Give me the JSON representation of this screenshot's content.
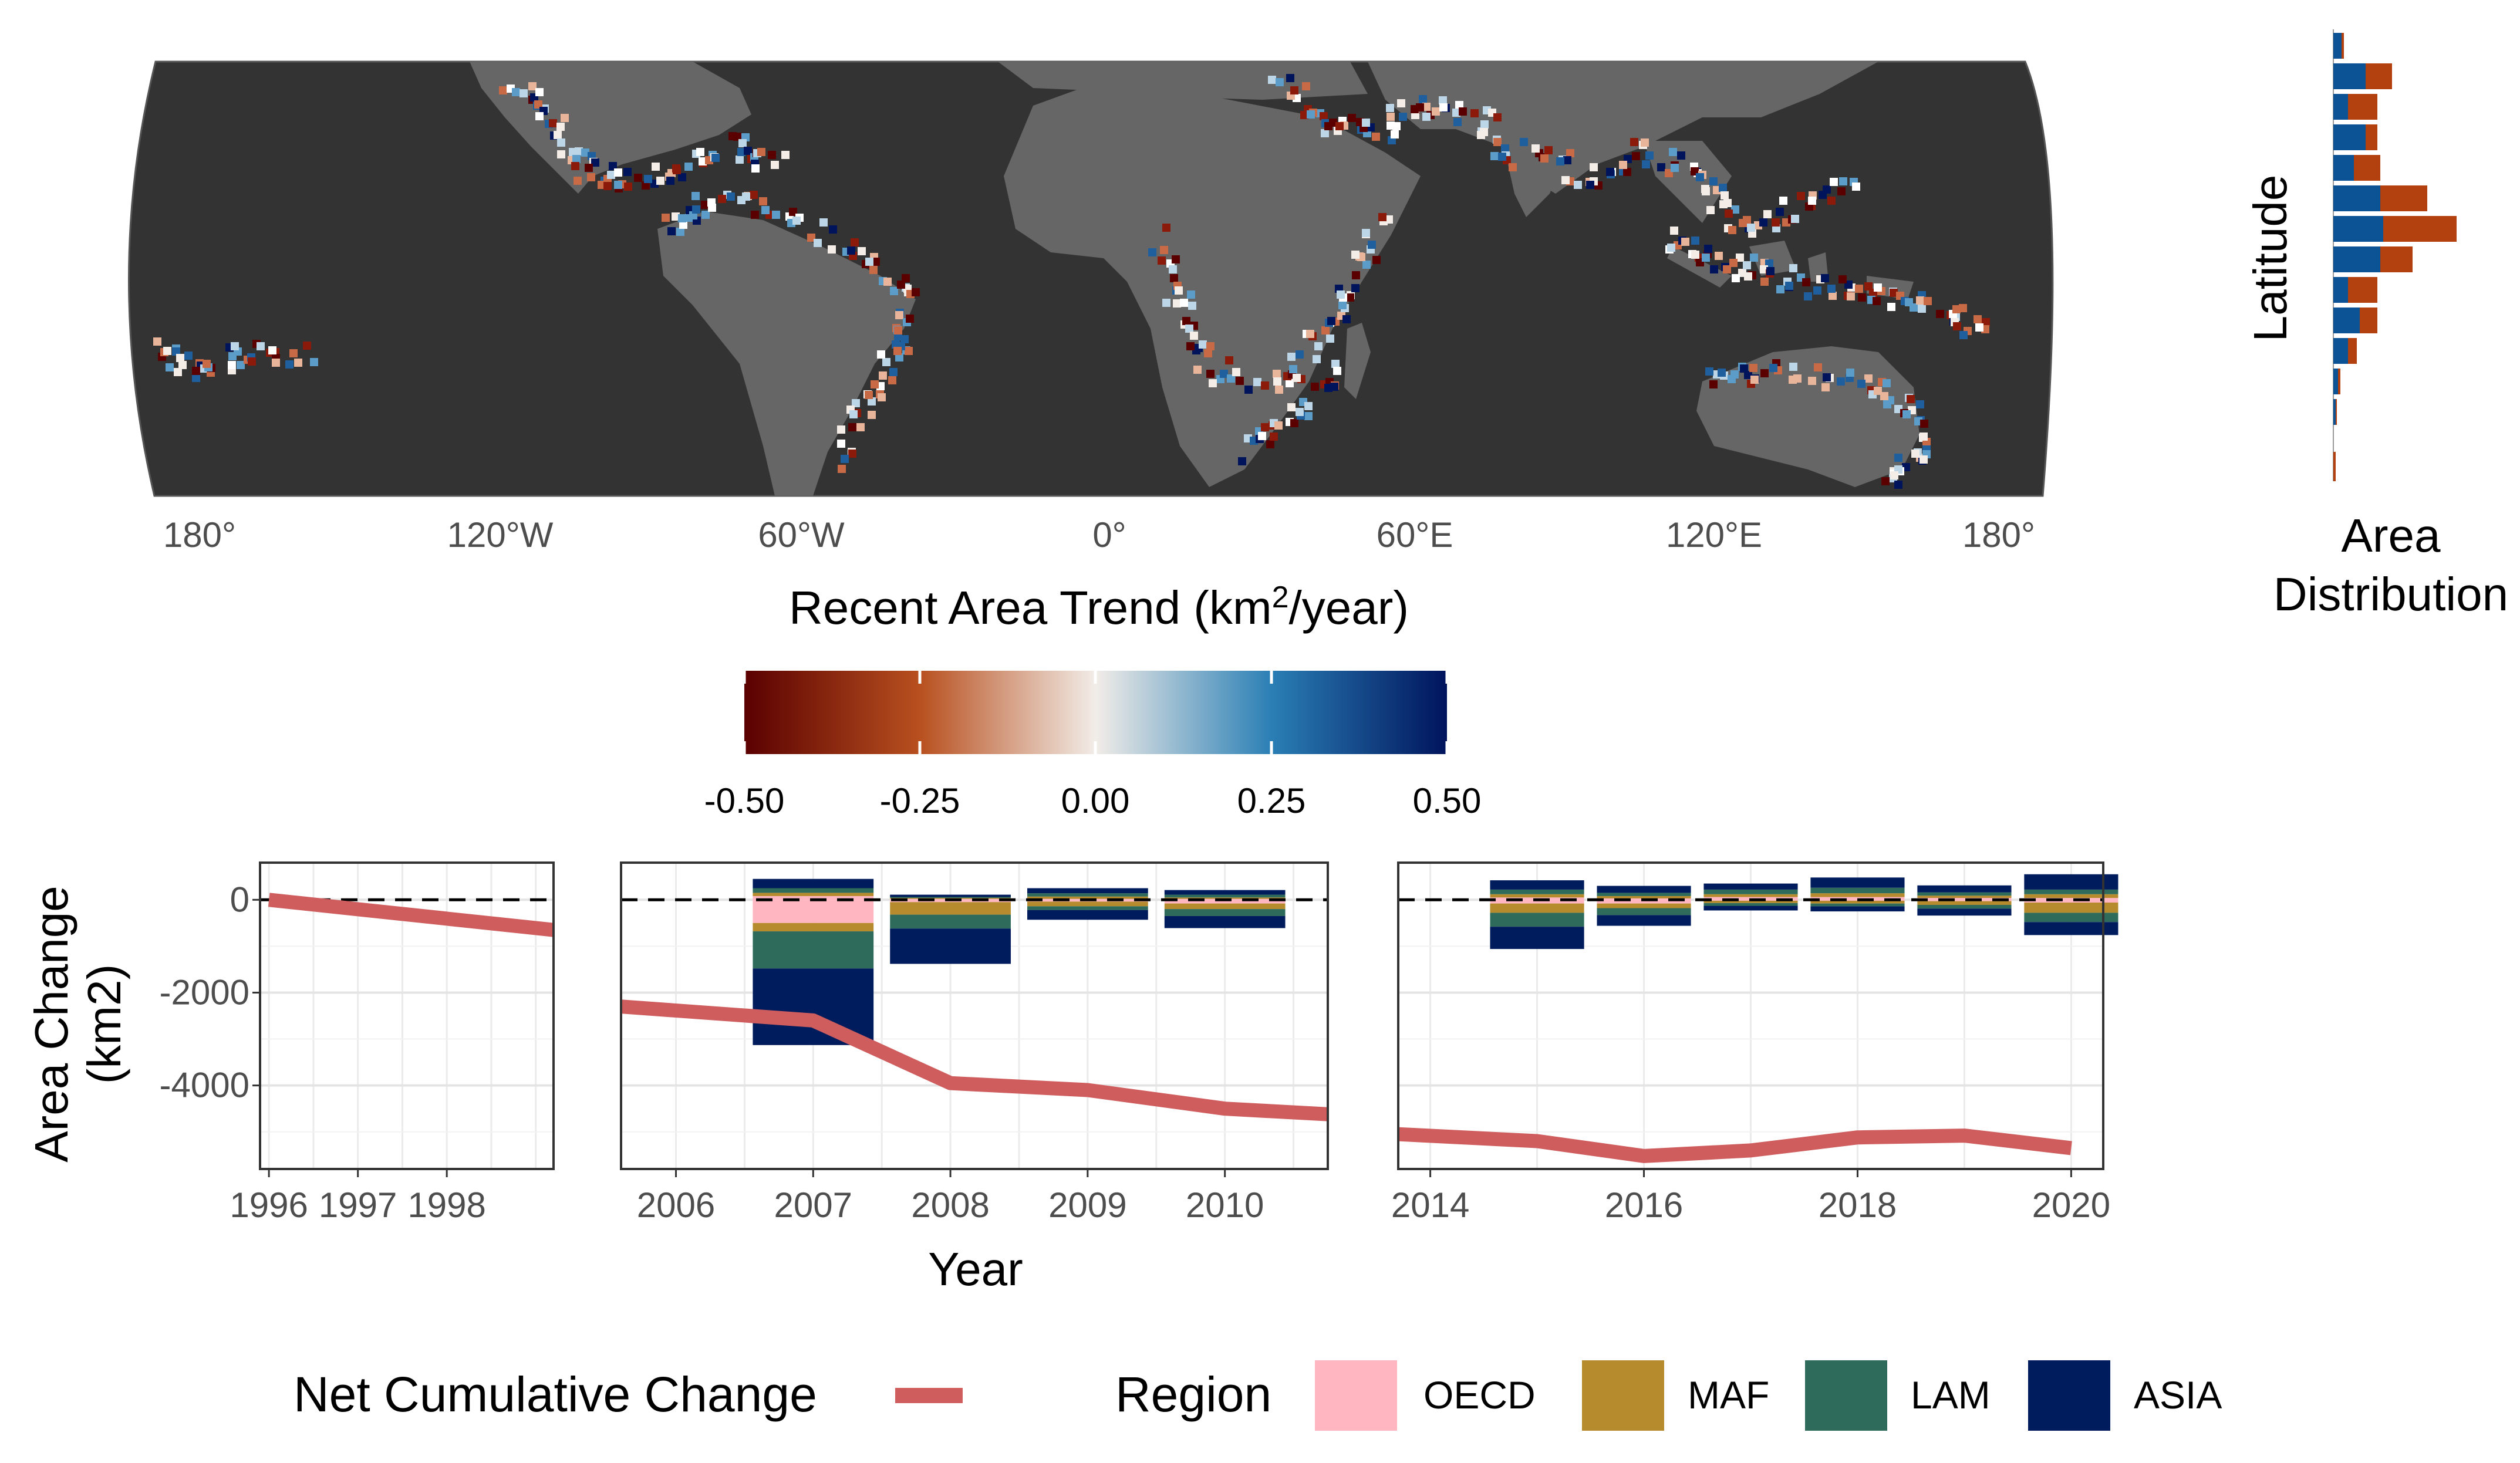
{
  "map": {
    "lon_ticks": [
      "180°",
      "120°W",
      "60°W",
      "0°",
      "60°E",
      "120°E",
      "180°"
    ],
    "colorbar_title_main": "Recent Area Trend (km",
    "colorbar_title_sup": "2",
    "colorbar_title_end": "/year)",
    "colorbar_ticks": [
      "-0.50",
      "-0.25",
      "0.00",
      "0.25",
      "0.50"
    ],
    "colorbar_range": [
      -0.5,
      0.5
    ],
    "ocean_color": "#333333",
    "land_color": "#666666"
  },
  "side": {
    "ylabel": "Latitude",
    "xlabel_line1": "Area",
    "xlabel_line2": "Distribution",
    "colors": [
      "#0b5394",
      "#b3410f"
    ]
  },
  "chart_data": {
    "type": "bar",
    "ylabel_line1": "Area Change",
    "ylabel_line2": "(km2)",
    "xlabel": "Year",
    "ylim": [
      -5800,
      800
    ],
    "y_ticks": [
      0,
      -2000,
      -4000
    ],
    "panels": [
      {
        "xlim": [
          1995.9,
          1999.2
        ],
        "x_ticks": [
          1996,
          1997,
          1998
        ],
        "bars": [],
        "net": [
          {
            "x": 1996,
            "y": 0
          },
          {
            "x": 1999.2,
            "y": -650
          }
        ]
      },
      {
        "xlim": [
          2005.6,
          2010.75
        ],
        "x_ticks": [
          2006,
          2007,
          2008,
          2009,
          2010
        ],
        "bars": [
          {
            "x": 2007,
            "pos": {
              "ASIA": 200,
              "LAM": 100,
              "MAF": 70,
              "OECD": 80
            },
            "neg": {
              "OECD": -500,
              "MAF": -180,
              "LAM": -800,
              "ASIA": -1650
            }
          },
          {
            "x": 2008,
            "pos": {
              "ASIA": 50,
              "LAM": 20,
              "MAF": 20,
              "OECD": 20
            },
            "neg": {
              "OECD": -50,
              "MAF": -270,
              "LAM": -300,
              "ASIA": -760
            }
          },
          {
            "x": 2009,
            "pos": {
              "ASIA": 110,
              "LAM": 70,
              "MAF": 50,
              "OECD": 20
            },
            "neg": {
              "OECD": -40,
              "MAF": -100,
              "LAM": -80,
              "ASIA": -210
            }
          },
          {
            "x": 2010,
            "pos": {
              "ASIA": 100,
              "LAM": 60,
              "MAF": 30,
              "OECD": 20
            },
            "neg": {
              "OECD": -80,
              "MAF": -120,
              "LAM": -150,
              "ASIA": -260
            }
          }
        ],
        "net": [
          {
            "x": 2005.6,
            "y": -2300
          },
          {
            "x": 2007,
            "y": -2600
          },
          {
            "x": 2008,
            "y": -3950
          },
          {
            "x": 2009,
            "y": -4100
          },
          {
            "x": 2010,
            "y": -4500
          },
          {
            "x": 2010.75,
            "y": -4620
          }
        ]
      },
      {
        "xlim": [
          2013.7,
          2020.3
        ],
        "x_ticks": [
          2014,
          2016,
          2018,
          2020
        ],
        "bars": [
          {
            "x": 2015,
            "pos": {
              "ASIA": 200,
              "LAM": 100,
              "MAF": 70,
              "OECD": 50
            },
            "neg": {
              "OECD": -80,
              "MAF": -200,
              "LAM": -300,
              "ASIA": -480
            }
          },
          {
            "x": 2016,
            "pos": {
              "ASIA": 150,
              "LAM": 70,
              "MAF": 50,
              "OECD": 30
            },
            "neg": {
              "OECD": -80,
              "MAF": -100,
              "LAM": -150,
              "ASIA": -230
            }
          },
          {
            "x": 2017,
            "pos": {
              "ASIA": 130,
              "LAM": 100,
              "MAF": 60,
              "OECD": 60
            },
            "neg": {
              "OECD": -20,
              "MAF": -50,
              "LAM": -60,
              "ASIA": -100
            }
          },
          {
            "x": 2018,
            "pos": {
              "ASIA": 220,
              "LAM": 120,
              "MAF": 80,
              "OECD": 60
            },
            "neg": {
              "OECD": -20,
              "MAF": -60,
              "LAM": -60,
              "ASIA": -110
            }
          },
          {
            "x": 2019,
            "pos": {
              "ASIA": 150,
              "LAM": 70,
              "MAF": 50,
              "OECD": 40
            },
            "neg": {
              "OECD": -30,
              "MAF": -80,
              "LAM": -80,
              "ASIA": -150
            }
          },
          {
            "x": 2020,
            "pos": {
              "ASIA": 330,
              "LAM": 100,
              "MAF": 80,
              "OECD": 40
            },
            "neg": {
              "OECD": -60,
              "MAF": -220,
              "LAM": -200,
              "ASIA": -280
            }
          }
        ],
        "net": [
          {
            "x": 2013.7,
            "y": -5050
          },
          {
            "x": 2015,
            "y": -5200
          },
          {
            "x": 2016,
            "y": -5520
          },
          {
            "x": 2017,
            "y": -5400
          },
          {
            "x": 2018,
            "y": -5120
          },
          {
            "x": 2019,
            "y": -5080
          },
          {
            "x": 2020,
            "y": -5350
          }
        ]
      }
    ],
    "region_order": [
      "OECD",
      "MAF",
      "LAM",
      "ASIA"
    ],
    "region_colors": {
      "OECD": "#ffb6c1",
      "MAF": "#b58b2d",
      "LAM": "#2e6b5a",
      "ASIA": "#001c5c"
    },
    "net_color": "#d05d5d"
  },
  "legend": {
    "net_label": "Net Cumulative Change",
    "region_title": "Region",
    "regions": [
      "OECD",
      "MAF",
      "LAM",
      "ASIA"
    ]
  }
}
